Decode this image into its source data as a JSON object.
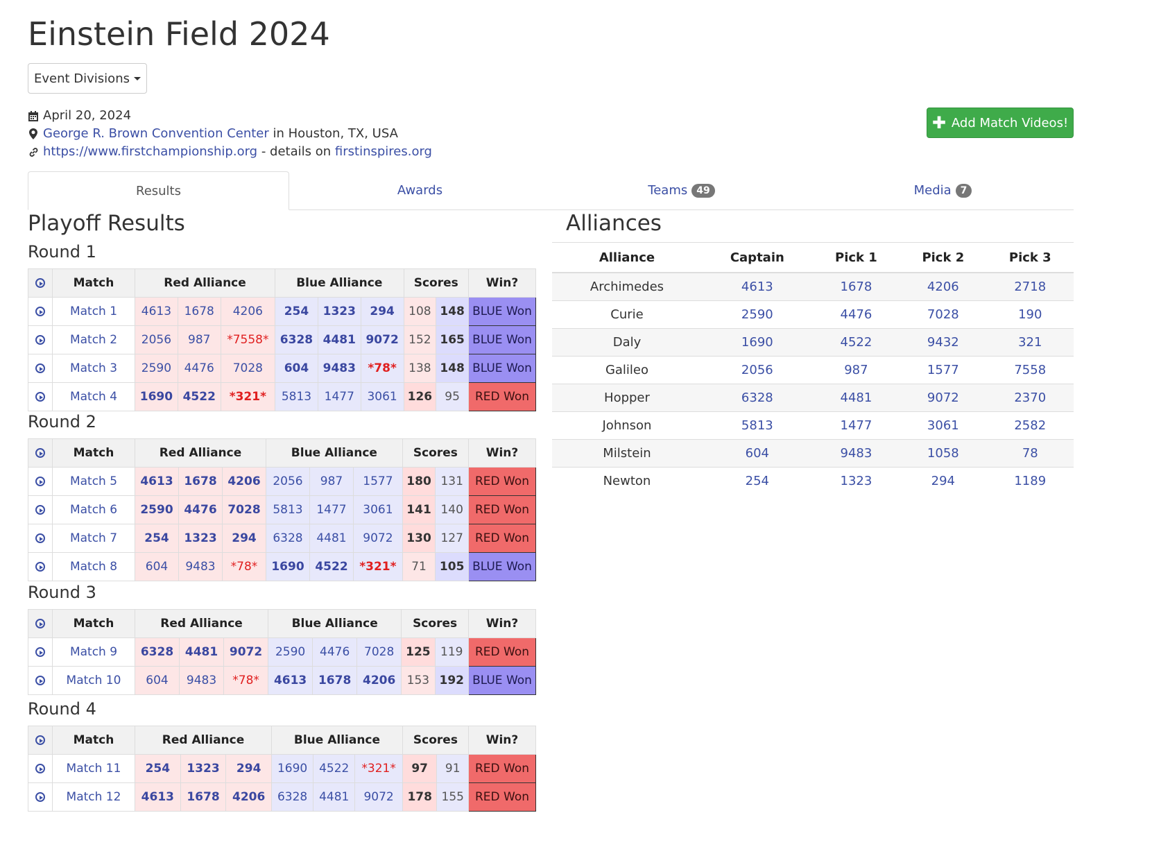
{
  "event": {
    "title": "Einstein Field 2024",
    "divisions_button": "Event Divisions",
    "date": "April 20, 2024",
    "venue_link": "George R. Brown Convention Center",
    "venue_location": " in Houston, TX, USA",
    "website": "https://www.firstchampionship.org",
    "details_prefix": " - details on ",
    "details_link": "firstinspires.org",
    "add_videos_button": "Add Match Videos!"
  },
  "tabs": [
    {
      "label": "Results",
      "badge": ""
    },
    {
      "label": "Awards",
      "badge": ""
    },
    {
      "label": "Teams",
      "badge": "49"
    },
    {
      "label": "Media",
      "badge": "7"
    }
  ],
  "playoff": {
    "title": "Playoff Results",
    "headers": {
      "match": "Match",
      "red": "Red Alliance",
      "blue": "Blue Alliance",
      "scores": "Scores",
      "win": "Win?"
    },
    "rounds": [
      {
        "title": "Round 1",
        "matches": [
          {
            "name": "Match 1",
            "red": [
              "4613",
              "1678",
              "4206"
            ],
            "blue": [
              "254",
              "1323",
              "294"
            ],
            "red_score": "108",
            "blue_score": "148",
            "result": "BLUE Won",
            "winner": "blue",
            "red_dq": [],
            "blue_dq": []
          },
          {
            "name": "Match 2",
            "red": [
              "2056",
              "987",
              "*7558*"
            ],
            "blue": [
              "6328",
              "4481",
              "9072"
            ],
            "red_score": "152",
            "blue_score": "165",
            "result": "BLUE Won",
            "winner": "blue",
            "red_dq": [
              2
            ],
            "blue_dq": []
          },
          {
            "name": "Match 3",
            "red": [
              "2590",
              "4476",
              "7028"
            ],
            "blue": [
              "604",
              "9483",
              "*78*"
            ],
            "red_score": "138",
            "blue_score": "148",
            "result": "BLUE Won",
            "winner": "blue",
            "red_dq": [],
            "blue_dq": [
              2
            ]
          },
          {
            "name": "Match 4",
            "red": [
              "1690",
              "4522",
              "*321*"
            ],
            "blue": [
              "5813",
              "1477",
              "3061"
            ],
            "red_score": "126",
            "blue_score": "95",
            "result": "RED Won",
            "winner": "red",
            "red_dq": [
              2
            ],
            "blue_dq": []
          }
        ]
      },
      {
        "title": "Round 2",
        "matches": [
          {
            "name": "Match 5",
            "red": [
              "4613",
              "1678",
              "4206"
            ],
            "blue": [
              "2056",
              "987",
              "1577"
            ],
            "red_score": "180",
            "blue_score": "131",
            "result": "RED Won",
            "winner": "red",
            "red_dq": [],
            "blue_dq": []
          },
          {
            "name": "Match 6",
            "red": [
              "2590",
              "4476",
              "7028"
            ],
            "blue": [
              "5813",
              "1477",
              "3061"
            ],
            "red_score": "141",
            "blue_score": "140",
            "result": "RED Won",
            "winner": "red",
            "red_dq": [],
            "blue_dq": []
          },
          {
            "name": "Match 7",
            "red": [
              "254",
              "1323",
              "294"
            ],
            "blue": [
              "6328",
              "4481",
              "9072"
            ],
            "red_score": "130",
            "blue_score": "127",
            "result": "RED Won",
            "winner": "red",
            "red_dq": [],
            "blue_dq": []
          },
          {
            "name": "Match 8",
            "red": [
              "604",
              "9483",
              "*78*"
            ],
            "blue": [
              "1690",
              "4522",
              "*321*"
            ],
            "red_score": "71",
            "blue_score": "105",
            "result": "BLUE Won",
            "winner": "blue",
            "red_dq": [
              2
            ],
            "blue_dq": [
              2
            ]
          }
        ]
      },
      {
        "title": "Round 3",
        "matches": [
          {
            "name": "Match 9",
            "red": [
              "6328",
              "4481",
              "9072"
            ],
            "blue": [
              "2590",
              "4476",
              "7028"
            ],
            "red_score": "125",
            "blue_score": "119",
            "result": "RED Won",
            "winner": "red",
            "red_dq": [],
            "blue_dq": []
          },
          {
            "name": "Match 10",
            "red": [
              "604",
              "9483",
              "*78*"
            ],
            "blue": [
              "4613",
              "1678",
              "4206"
            ],
            "red_score": "153",
            "blue_score": "192",
            "result": "BLUE Won",
            "winner": "blue",
            "red_dq": [
              2
            ],
            "blue_dq": []
          }
        ]
      },
      {
        "title": "Round 4",
        "matches": [
          {
            "name": "Match 11",
            "red": [
              "254",
              "1323",
              "294"
            ],
            "blue": [
              "1690",
              "4522",
              "*321*"
            ],
            "red_score": "97",
            "blue_score": "91",
            "result": "RED Won",
            "winner": "red",
            "red_dq": [],
            "blue_dq": [
              2
            ]
          },
          {
            "name": "Match 12",
            "red": [
              "4613",
              "1678",
              "4206"
            ],
            "blue": [
              "6328",
              "4481",
              "9072"
            ],
            "red_score": "178",
            "blue_score": "155",
            "result": "RED Won",
            "winner": "red",
            "red_dq": [],
            "blue_dq": []
          }
        ]
      }
    ]
  },
  "alliances": {
    "title": "Alliances",
    "headers": [
      "Alliance",
      "Captain",
      "Pick 1",
      "Pick 2",
      "Pick 3"
    ],
    "rows": [
      [
        "Archimedes",
        "4613",
        "1678",
        "4206",
        "2718"
      ],
      [
        "Curie",
        "2590",
        "4476",
        "7028",
        "190"
      ],
      [
        "Daly",
        "1690",
        "4522",
        "9432",
        "321"
      ],
      [
        "Galileo",
        "2056",
        "987",
        "1577",
        "7558"
      ],
      [
        "Hopper",
        "6328",
        "4481",
        "9072",
        "2370"
      ],
      [
        "Johnson",
        "5813",
        "1477",
        "3061",
        "2582"
      ],
      [
        "Milstein",
        "604",
        "9483",
        "1058",
        "78"
      ],
      [
        "Newton",
        "254",
        "1323",
        "294",
        "1189"
      ]
    ]
  },
  "colors": {
    "red_won": "#f06a6a",
    "blue_won": "#9a8ff2",
    "add_button": "#3fab4a",
    "link": "#3b4fa5",
    "dq": "#e01f1f"
  }
}
